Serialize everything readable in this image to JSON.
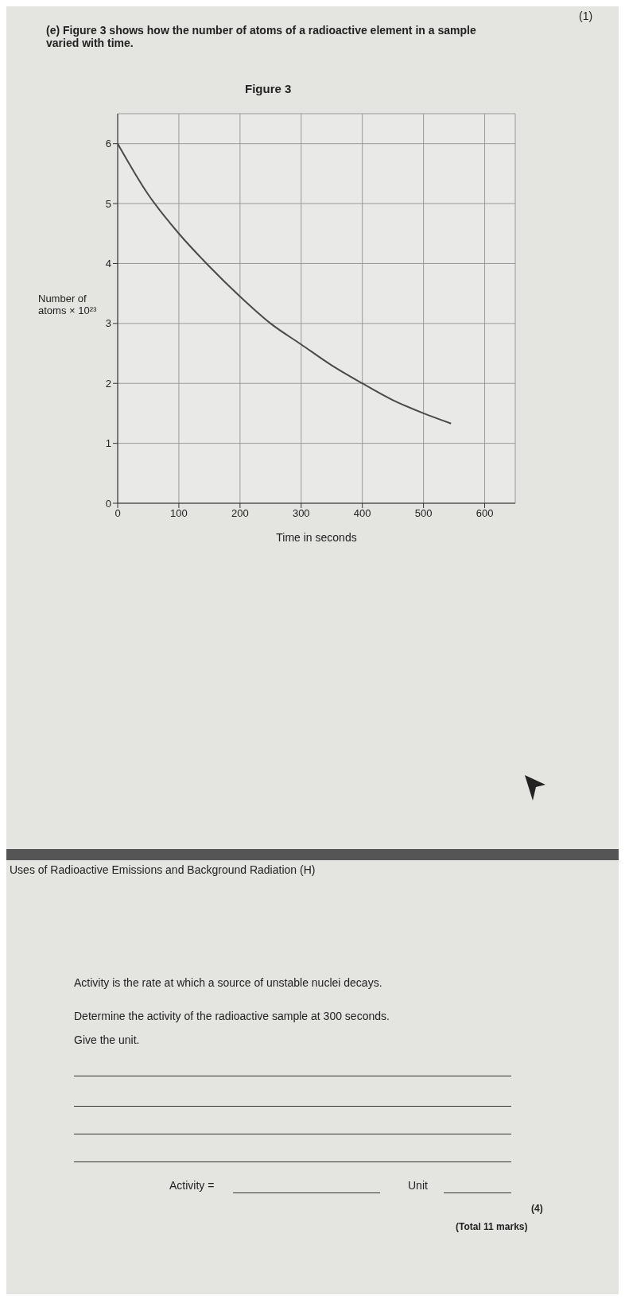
{
  "chart_data": {
    "type": "line",
    "title": "Figure 3",
    "xlabel": "Time in seconds",
    "ylabel": "Number of atoms × 10²³",
    "x": [
      0,
      50,
      100,
      150,
      200,
      250,
      300,
      350,
      400,
      450,
      500,
      545
    ],
    "series": [
      {
        "color": "#4a4a4a",
        "values": [
          6.0,
          5.15,
          4.5,
          3.95,
          3.45,
          3.0,
          2.65,
          2.3,
          2.0,
          1.72,
          1.5,
          1.33
        ]
      }
    ],
    "xlim": [
      0,
      650
    ],
    "ylim": [
      0,
      6.5
    ],
    "xticks": [
      0,
      100,
      200,
      300,
      400,
      500,
      600
    ],
    "yticks": [
      0,
      1,
      2,
      3,
      4,
      5,
      6
    ],
    "grid": true,
    "marker": "none",
    "line_style": "solid",
    "annotations": [
      "(1)",
      "(e)   Figure 3 shows how the number of atoms of a radioactive element in a sample varied with time.",
      "Uses of Radioactive Emissions and Background Radiation (H)",
      "Activity is the rate at which a source of unstable nuclei decays.",
      "Determine the activity of the radioactive sample at 300 seconds.",
      "Give the unit.",
      "Activity = ",
      "Unit",
      "(4)",
      "(Total 11 marks)"
    ]
  }
}
